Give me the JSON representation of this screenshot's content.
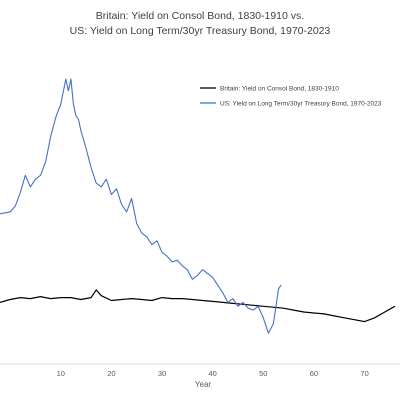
{
  "chart_data": {
    "type": "line",
    "title_line1": "Britain: Yield on Consol Bond, 1830-1910 vs.",
    "title_line2": "US: Yield on Long Term/30yr Treasury Bond, 1970-2023",
    "xlabel": "Year",
    "ylabel": "",
    "x_ticks": [
      "10",
      "20",
      "30",
      "40",
      "50",
      "60",
      "70"
    ],
    "xlim": [
      -2,
      77
    ],
    "ylim": [
      0,
      16
    ],
    "legend_position": "top-right",
    "grid": false,
    "series": [
      {
        "name": "Britain: Yield on Consol Bond, 1830-1910",
        "color": "#000000",
        "x": [
          -2,
          0,
          2,
          4,
          6,
          8,
          10,
          12,
          14,
          16,
          17,
          18,
          20,
          22,
          24,
          26,
          28,
          30,
          32,
          34,
          36,
          38,
          40,
          42,
          44,
          46,
          48,
          50,
          52,
          54,
          56,
          58,
          60,
          62,
          64,
          66,
          68,
          70,
          72,
          74,
          76
        ],
        "values": [
          3.2,
          3.35,
          3.45,
          3.4,
          3.5,
          3.4,
          3.45,
          3.45,
          3.35,
          3.45,
          3.85,
          3.55,
          3.3,
          3.35,
          3.4,
          3.35,
          3.3,
          3.45,
          3.4,
          3.4,
          3.35,
          3.3,
          3.25,
          3.2,
          3.15,
          3.1,
          3.05,
          3.0,
          2.95,
          2.9,
          2.8,
          2.7,
          2.65,
          2.6,
          2.5,
          2.4,
          2.3,
          2.2,
          2.4,
          2.7,
          3.0
        ]
      },
      {
        "name": "US: Yield on Long Term/30yr Treasury Bond, 1970-2023",
        "color": "#4472C4",
        "x": [
          -2,
          0,
          1,
          2,
          3,
          4,
          5,
          6,
          7,
          8,
          9,
          10,
          11,
          11.5,
          12,
          12.5,
          13,
          13.5,
          14,
          15,
          16,
          17,
          18,
          19,
          20,
          21,
          22,
          23,
          24,
          25,
          26,
          27,
          28,
          29,
          30,
          31,
          32,
          33,
          34,
          35,
          36,
          37,
          38,
          39,
          40,
          41,
          42,
          43,
          44,
          45,
          46,
          47,
          48,
          49,
          50,
          51,
          52,
          53,
          53.5
        ],
        "values": [
          7.8,
          7.9,
          8.2,
          8.9,
          9.8,
          9.2,
          9.6,
          9.8,
          10.5,
          11.8,
          12.8,
          13.5,
          14.8,
          14.2,
          14.8,
          13.5,
          12.9,
          12.7,
          12.1,
          11.2,
          10.2,
          9.4,
          9.2,
          9.6,
          8.8,
          9.1,
          8.3,
          7.9,
          8.6,
          7.3,
          6.8,
          6.6,
          6.2,
          6.4,
          5.8,
          5.6,
          5.3,
          5.4,
          5.1,
          4.9,
          4.4,
          4.6,
          4.9,
          4.7,
          4.5,
          4.1,
          3.7,
          3.2,
          3.4,
          3.0,
          3.2,
          2.9,
          2.8,
          3.0,
          2.4,
          1.6,
          2.1,
          3.9,
          4.1
        ]
      }
    ]
  }
}
